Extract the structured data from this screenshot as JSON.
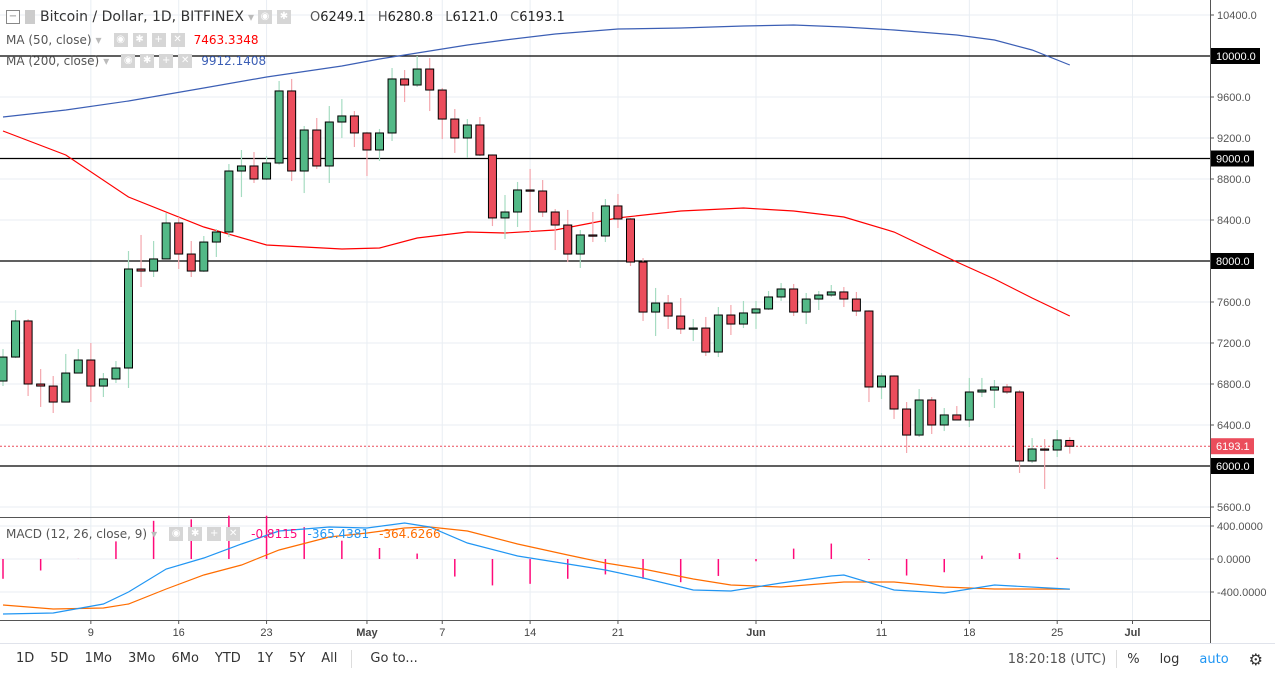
{
  "header": {
    "symbol_title": "Bitcoin / Dollar, 1D, BITFINEX",
    "open_label": "O",
    "open": "6249.1",
    "high_label": "H",
    "high": "6280.8",
    "low_label": "L",
    "low": "6121.0",
    "close_label": "C",
    "close": "6193.1"
  },
  "indicators": [
    {
      "label": "MA (50, close)",
      "value": "7463.3348",
      "color": "#ff0000"
    },
    {
      "label": "MA (200, close)",
      "value": "9912.1408",
      "color": "#3c5fb5"
    }
  ],
  "macd": {
    "label": "MACD (12, 26, close, 9)",
    "hist_value": "-0.8115",
    "macd_value": "-365.4381",
    "signal_value": "-364.6266",
    "hist_color": "#ff0a7a",
    "macd_color": "#2196f3",
    "signal_color": "#ff6d00"
  },
  "colors": {
    "up": "#53b987",
    "down": "#eb4d5c",
    "hline": "#000000"
  },
  "price_axis": {
    "ticks": [
      "10400.0",
      "9600.0",
      "9200.0",
      "8800.0",
      "8400.0",
      "7600.0",
      "7200.0",
      "6800.0",
      "6400.0",
      "5600.0"
    ],
    "hlines": [
      "10000.0",
      "9000.0",
      "8000.0",
      "6000.0"
    ],
    "last_price": "6193.1"
  },
  "macd_axis": {
    "ticks": [
      "400.0000",
      "0.0000",
      "-400.0000"
    ]
  },
  "time_axis": {
    "ticks": [
      {
        "label": "9",
        "date": "Apr 9"
      },
      {
        "label": "16",
        "date": "Apr 16"
      },
      {
        "label": "23",
        "date": "Apr 23"
      },
      {
        "label": "May",
        "date": "May 1"
      },
      {
        "label": "7",
        "date": "May 7"
      },
      {
        "label": "14",
        "date": "May 14"
      },
      {
        "label": "21",
        "date": "May 21"
      },
      {
        "label": "Jun",
        "date": "Jun 1"
      },
      {
        "label": "11",
        "date": "Jun 11"
      },
      {
        "label": "18",
        "date": "Jun 18"
      },
      {
        "label": "25",
        "date": "Jun 25"
      },
      {
        "label": "Jul",
        "date": "Jul 1"
      }
    ]
  },
  "bottombar": {
    "ranges": [
      "1D",
      "5D",
      "1Mo",
      "3Mo",
      "6Mo",
      "YTD",
      "1Y",
      "5Y",
      "All"
    ],
    "goto": "Go to...",
    "clock": "18:20:18 (UTC)",
    "percent": "%",
    "log": "log",
    "auto": "auto"
  },
  "chart_data": {
    "type": "candlestick",
    "ylim": [
      5500,
      10500
    ],
    "macd_ylim": [
      -750,
      480
    ],
    "candles_columns": [
      "date",
      "open",
      "high",
      "low",
      "close"
    ],
    "candles": [
      [
        "Apr 2",
        6829,
        7141,
        6780,
        7063
      ],
      [
        "Apr 3",
        7063,
        7522,
        7053,
        7415
      ],
      [
        "Apr 4",
        7415,
        7434,
        6683,
        6800
      ],
      [
        "Apr 5",
        6800,
        6946,
        6576,
        6780
      ],
      [
        "Apr 6",
        6780,
        6878,
        6517,
        6624
      ],
      [
        "Apr 7",
        6624,
        7093,
        6624,
        6907
      ],
      [
        "Apr 8",
        6907,
        7141,
        6907,
        7034
      ],
      [
        "Apr 9",
        7034,
        7200,
        6624,
        6780
      ],
      [
        "Apr 10",
        6780,
        6907,
        6673,
        6849
      ],
      [
        "Apr 11",
        6849,
        7024,
        6810,
        6956
      ],
      [
        "Apr 12",
        6956,
        8098,
        6761,
        7922
      ],
      [
        "Apr 13",
        7922,
        8254,
        7746,
        7902
      ],
      [
        "Apr 14",
        7902,
        8195,
        7844,
        8020
      ],
      [
        "Apr 15",
        8020,
        8468,
        8020,
        8371
      ],
      [
        "Apr 16",
        8371,
        8429,
        7922,
        8068
      ],
      [
        "Apr 17",
        8068,
        8195,
        7844,
        7902
      ],
      [
        "Apr 18",
        7902,
        8244,
        7893,
        8185
      ],
      [
        "Apr 19",
        8185,
        8312,
        8039,
        8283
      ],
      [
        "Apr 20",
        8283,
        8946,
        8234,
        8878
      ],
      [
        "Apr 21",
        8878,
        9083,
        8624,
        8927
      ],
      [
        "Apr 22",
        8927,
        9063,
        8761,
        8800
      ],
      [
        "Apr 23",
        8800,
        9024,
        8790,
        8956
      ],
      [
        "Apr 24",
        8956,
        9756,
        8940,
        9659
      ],
      [
        "Apr 25",
        9659,
        9776,
        8780,
        8878
      ],
      [
        "Apr 26",
        8878,
        9317,
        8663,
        9278
      ],
      [
        "Apr 27",
        9278,
        9395,
        8898,
        8927
      ],
      [
        "Apr 28",
        8927,
        9512,
        8761,
        9356
      ],
      [
        "Apr 29",
        9356,
        9580,
        9200,
        9415
      ],
      [
        "Apr 30",
        9415,
        9463,
        9112,
        9249
      ],
      [
        "May 1",
        9249,
        9259,
        8829,
        9083
      ],
      [
        "May 2",
        9083,
        9288,
        8976,
        9249
      ],
      [
        "May 3",
        9249,
        9883,
        9171,
        9776
      ],
      [
        "May 4",
        9776,
        9863,
        9551,
        9717
      ],
      [
        "May 5",
        9717,
        10000,
        9698,
        9873
      ],
      [
        "May 6",
        9873,
        9980,
        9463,
        9668
      ],
      [
        "May 7",
        9668,
        9688,
        9190,
        9385
      ],
      [
        "May 8",
        9385,
        9483,
        9054,
        9200
      ],
      [
        "May 9",
        9200,
        9385,
        9005,
        9327
      ],
      [
        "May 10",
        9327,
        9405,
        9024,
        9034
      ],
      [
        "May 11",
        9034,
        9040,
        8341,
        8420
      ],
      [
        "May 12",
        8420,
        8644,
        8215,
        8478
      ],
      [
        "May 13",
        8478,
        8771,
        8332,
        8693
      ],
      [
        "May 14",
        8693,
        8898,
        8283,
        8683
      ],
      [
        "May 15",
        8683,
        8790,
        8429,
        8478
      ],
      [
        "May 16",
        8478,
        8507,
        8107,
        8351
      ],
      [
        "May 17",
        8351,
        8498,
        7990,
        8068
      ],
      [
        "May 18",
        8068,
        8302,
        7932,
        8254
      ],
      [
        "May 19",
        8254,
        8478,
        8185,
        8244
      ],
      [
        "May 20",
        8244,
        8605,
        8185,
        8537
      ],
      [
        "May 21",
        8537,
        8654,
        8322,
        8410
      ],
      [
        "May 22",
        8410,
        8420,
        7951,
        7990
      ],
      [
        "May 23",
        7990,
        8029,
        7415,
        7502
      ],
      [
        "May 24",
        7502,
        7737,
        7268,
        7590
      ],
      [
        "May 25",
        7590,
        7668,
        7337,
        7463
      ],
      [
        "May 26",
        7463,
        7639,
        7288,
        7337
      ],
      [
        "May 27",
        7337,
        7434,
        7219,
        7346
      ],
      [
        "May 28",
        7346,
        7454,
        7073,
        7112
      ],
      [
        "May 29",
        7112,
        7551,
        7063,
        7473
      ],
      [
        "May 30",
        7473,
        7571,
        7278,
        7385
      ],
      [
        "May 31",
        7385,
        7610,
        7346,
        7493
      ],
      [
        "Jun 1",
        7493,
        7610,
        7337,
        7532
      ],
      [
        "Jun 2",
        7532,
        7707,
        7522,
        7649
      ],
      [
        "Jun 3",
        7649,
        7785,
        7610,
        7727
      ],
      [
        "Jun 4",
        7727,
        7776,
        7463,
        7502
      ],
      [
        "Jun 5",
        7502,
        7688,
        7385,
        7629
      ],
      [
        "Jun 6",
        7629,
        7707,
        7522,
        7668
      ],
      [
        "Jun 7",
        7668,
        7766,
        7649,
        7698
      ],
      [
        "Jun 8",
        7698,
        7746,
        7551,
        7629
      ],
      [
        "Jun 9",
        7629,
        7698,
        7463,
        7512
      ],
      [
        "Jun 10",
        7512,
        7520,
        6624,
        6771
      ],
      [
        "Jun 11",
        6771,
        6907,
        6654,
        6878
      ],
      [
        "Jun 12",
        6878,
        6885,
        6459,
        6556
      ],
      [
        "Jun 13",
        6556,
        6624,
        6127,
        6302
      ],
      [
        "Jun 14",
        6302,
        6751,
        6283,
        6644
      ],
      [
        "Jun 15",
        6644,
        6673,
        6312,
        6400
      ],
      [
        "Jun 16",
        6400,
        6566,
        6341,
        6498
      ],
      [
        "Jun 17",
        6498,
        6585,
        6449,
        6449
      ],
      [
        "Jun 18",
        6449,
        6859,
        6380,
        6722
      ],
      [
        "Jun 19",
        6722,
        6859,
        6673,
        6741
      ],
      [
        "Jun 20",
        6741,
        6839,
        6566,
        6771
      ],
      [
        "Jun 21",
        6771,
        6800,
        6702,
        6722
      ],
      [
        "Jun 22",
        6722,
        6741,
        5932,
        6049
      ],
      [
        "Jun 23",
        6049,
        6273,
        6029,
        6166
      ],
      [
        "Jun 24",
        6166,
        6263,
        5776,
        6156
      ],
      [
        "Jun 25",
        6156,
        6351,
        6088,
        6254
      ],
      [
        "Jun 26",
        6249.1,
        6280.8,
        6121.0,
        6193.1
      ]
    ],
    "ma50": [
      [
        "Apr 2",
        9268
      ],
      [
        "Apr 7",
        9034
      ],
      [
        "Apr 12",
        8624
      ],
      [
        "Apr 18",
        8332
      ],
      [
        "Apr 23",
        8156
      ],
      [
        "Apr 29",
        8117
      ],
      [
        "May 2",
        8127
      ],
      [
        "May 5",
        8224
      ],
      [
        "May 9",
        8283
      ],
      [
        "May 12",
        8273
      ],
      [
        "May 16",
        8302
      ],
      [
        "May 21",
        8420
      ],
      [
        "May 26",
        8488
      ],
      [
        "May 31",
        8517
      ],
      [
        "Jun 4",
        8488
      ],
      [
        "Jun 8",
        8429
      ],
      [
        "Jun 12",
        8283
      ],
      [
        "Jun 17",
        7990
      ],
      [
        "Jun 20",
        7824
      ],
      [
        "Jun 23",
        7639
      ],
      [
        "Jun 26",
        7463.3
      ]
    ],
    "ma200": [
      [
        "Apr 2",
        9405
      ],
      [
        "Apr 7",
        9473
      ],
      [
        "Apr 12",
        9561
      ],
      [
        "Apr 18",
        9688
      ],
      [
        "Apr 23",
        9795
      ],
      [
        "Apr 29",
        9902
      ],
      [
        "May 2",
        9971
      ],
      [
        "May 5",
        10029
      ],
      [
        "May 9",
        10107
      ],
      [
        "May 12",
        10156
      ],
      [
        "May 16",
        10215
      ],
      [
        "May 21",
        10263
      ],
      [
        "May 26",
        10273
      ],
      [
        "May 31",
        10293
      ],
      [
        "Jun 4",
        10302
      ],
      [
        "Jun 8",
        10283
      ],
      [
        "Jun 12",
        10254
      ],
      [
        "Jun 17",
        10205
      ],
      [
        "Jun 20",
        10156
      ],
      [
        "Jun 23",
        10059
      ],
      [
        "Jun 26",
        9912.1
      ]
    ],
    "macd_line": [
      [
        "Apr 2",
        -667
      ],
      [
        "Apr 6",
        -654
      ],
      [
        "Apr 10",
        -545
      ],
      [
        "Apr 12",
        -400
      ],
      [
        "Apr 15",
        -121
      ],
      [
        "Apr 18",
        12
      ],
      [
        "Apr 21",
        182
      ],
      [
        "Apr 24",
        339
      ],
      [
        "Apr 28",
        388
      ],
      [
        "May 1",
        376
      ],
      [
        "May 4",
        436
      ],
      [
        "May 6",
        388
      ],
      [
        "May 9",
        194
      ],
      [
        "May 13",
        36
      ],
      [
        "May 17",
        -61
      ],
      [
        "May 20",
        -133
      ],
      [
        "May 23",
        -230
      ],
      [
        "May 27",
        -376
      ],
      [
        "May 30",
        -388
      ],
      [
        "Jun 3",
        -291
      ],
      [
        "Jun 7",
        -206
      ],
      [
        "Jun 8",
        -194
      ],
      [
        "Jun 12",
        -376
      ],
      [
        "Jun 16",
        -412
      ],
      [
        "Jun 20",
        -315
      ],
      [
        "Jun 26",
        -365.4
      ]
    ],
    "signal_line": [
      [
        "Apr 2",
        -558
      ],
      [
        "Apr 6",
        -606
      ],
      [
        "Apr 10",
        -594
      ],
      [
        "Apr 12",
        -545
      ],
      [
        "Apr 15",
        -364
      ],
      [
        "Apr 18",
        -194
      ],
      [
        "Apr 21",
        -73
      ],
      [
        "Apr 24",
        109
      ],
      [
        "Apr 28",
        267
      ],
      [
        "May 1",
        315
      ],
      [
        "May 4",
        376
      ],
      [
        "May 6",
        388
      ],
      [
        "May 9",
        339
      ],
      [
        "May 13",
        182
      ],
      [
        "May 17",
        48
      ],
      [
        "May 20",
        -48
      ],
      [
        "May 23",
        -121
      ],
      [
        "May 27",
        -242
      ],
      [
        "May 30",
        -315
      ],
      [
        "Jun 3",
        -339
      ],
      [
        "Jun 7",
        -291
      ],
      [
        "Jun 8",
        -279
      ],
      [
        "Jun 12",
        -279
      ],
      [
        "Jun 16",
        -339
      ],
      [
        "Jun 20",
        -364
      ],
      [
        "Jun 26",
        -364.6
      ]
    ]
  }
}
